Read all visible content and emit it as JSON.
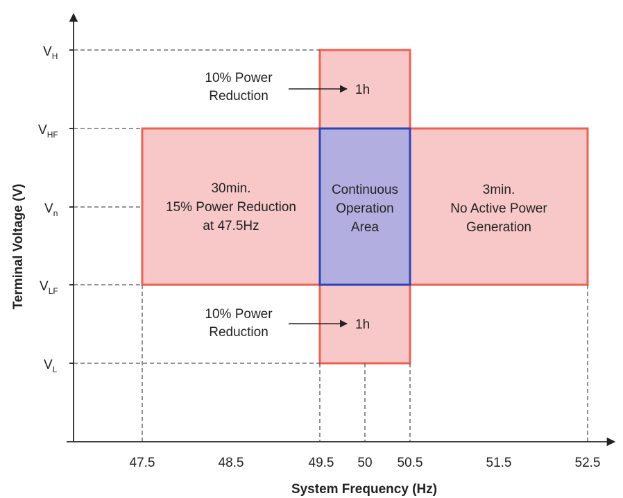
{
  "colors": {
    "zone_fill": "#f8c8c8",
    "zone_border": "#f0604f",
    "continuous_fill": "#b2aee0",
    "continuous_border": "#2945b8",
    "axis": "#222222",
    "guide": "#555555"
  },
  "axes": {
    "x_title": "System Frequency (Hz)",
    "y_title": "Terminal Voltage (V)",
    "x_ticks": [
      "47.5",
      "48.5",
      "49.5",
      "50",
      "50.5",
      "51.5",
      "52.5"
    ],
    "y_ticks": [
      {
        "main": "V",
        "sub": "H"
      },
      {
        "main": "V",
        "sub": "HF"
      },
      {
        "main": "V",
        "sub": "n"
      },
      {
        "main": "V",
        "sub": "LF"
      },
      {
        "main": "V",
        "sub": "L"
      }
    ]
  },
  "zones": {
    "left": {
      "lines": [
        "30min.",
        "15% Power Reduction",
        "at 47.5Hz"
      ]
    },
    "center": {
      "lines": [
        "Continuous",
        "Operation",
        "Area"
      ]
    },
    "right": {
      "lines": [
        "3min.",
        "No Active Power",
        "Generation"
      ]
    },
    "top": {
      "label_lines": [
        "10% Power",
        "Reduction"
      ],
      "duration": "1h"
    },
    "bottom": {
      "label_lines": [
        "10% Power",
        "Reduction"
      ],
      "duration": "1h"
    }
  }
}
